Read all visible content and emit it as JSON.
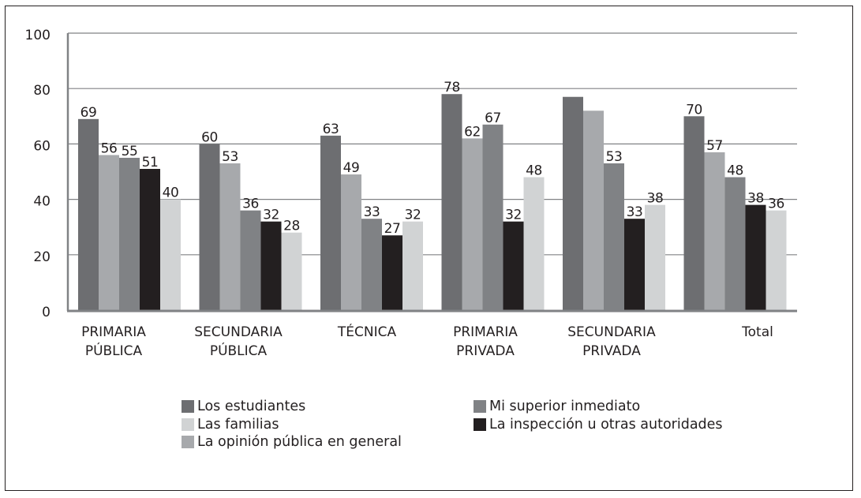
{
  "chart_data": {
    "type": "bar",
    "title": "",
    "xlabel": "",
    "ylabel": "",
    "ylim": [
      0,
      100
    ],
    "yticks": [
      0,
      20,
      40,
      60,
      80,
      100
    ],
    "grid": true,
    "legend_position": "bottom",
    "categories": [
      [
        "PRIMARIA",
        "PÚBLICA"
      ],
      [
        "SECUNDARIA",
        "PÚBLICA"
      ],
      [
        "TÉCNICA"
      ],
      [
        "PRIMARIA",
        "PRIVADA"
      ],
      [
        "SECUNDARIA",
        "PRIVADA"
      ],
      [
        "Total"
      ]
    ],
    "series": [
      {
        "name": "Los estudiantes",
        "color": "#6d6e71",
        "values": [
          69,
          60,
          63,
          78,
          77,
          70
        ],
        "labels": [
          "69",
          "60",
          "63",
          "78",
          "",
          "70"
        ]
      },
      {
        "name": "La opinión pública en general",
        "color": "#a7a9ac",
        "values": [
          56,
          53,
          49,
          62,
          72,
          57
        ],
        "labels": [
          "56",
          "53",
          "49",
          "62",
          "",
          "57"
        ]
      },
      {
        "name": "Mi superior inmediato",
        "color": "#808285",
        "values": [
          55,
          36,
          33,
          67,
          53,
          48
        ],
        "labels": [
          "55",
          "36",
          "33",
          "67",
          "53",
          "48"
        ]
      },
      {
        "name": "La inspección u otras autoridades",
        "color": "#231f20",
        "values": [
          51,
          32,
          27,
          32,
          33,
          38
        ],
        "labels": [
          "51",
          "32",
          "27",
          "32",
          "33",
          "38"
        ]
      },
      {
        "name": "Las familias",
        "color": "#d1d3d4",
        "values": [
          40,
          28,
          32,
          48,
          38,
          36
        ],
        "labels": [
          "40",
          "28",
          "32",
          "48",
          "38",
          "36"
        ]
      }
    ]
  },
  "legend": {
    "left": [
      {
        "label": "Los estudiantes",
        "color": "#6d6e71"
      },
      {
        "label": "Las familias",
        "color": "#d1d3d4"
      },
      {
        "label": "La opinión pública en general",
        "color": "#a7a9ac"
      }
    ],
    "right": [
      {
        "label": "Mi superior inmediato",
        "color": "#808285"
      },
      {
        "label": "La inspección u otras autoridades",
        "color": "#231f20"
      }
    ]
  }
}
